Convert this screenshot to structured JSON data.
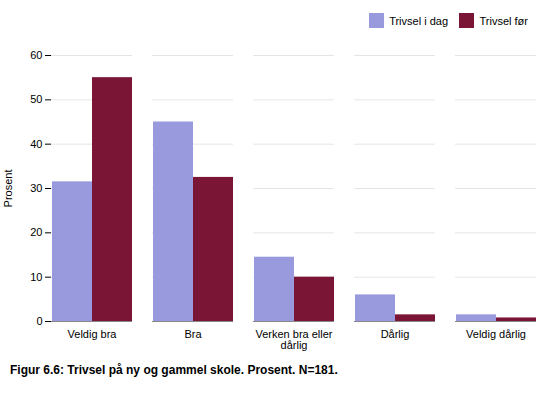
{
  "chart_data": {
    "type": "bar",
    "caption": "Figur 6.6: Trivsel på ny og gammel skole. Prosent. N=181.",
    "ylabel": "Prosent",
    "categories": [
      "Veldig bra",
      "Bra",
      "Verken bra eller\ndårlig",
      "Dårlig",
      "Veldig dårlig"
    ],
    "series": [
      {
        "name": "Trivsel i dag",
        "color": "#9999dd",
        "values": [
          31.5,
          45,
          14.5,
          6,
          1.5
        ]
      },
      {
        "name": "Trivsel før",
        "color": "#7a1535",
        "values": [
          55,
          32.5,
          10,
          1.5,
          0.8
        ]
      }
    ],
    "ylim": [
      0,
      60
    ],
    "yticks": [
      0,
      10,
      20,
      30,
      40,
      50,
      60
    ],
    "grid": true,
    "legend": "upper right"
  }
}
